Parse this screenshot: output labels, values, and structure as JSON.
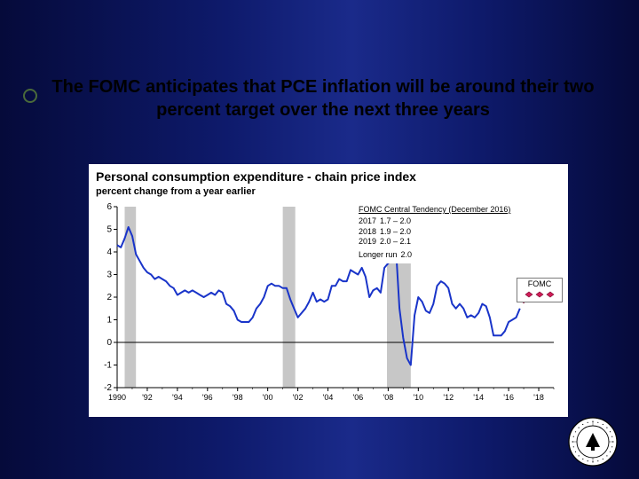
{
  "slide": {
    "background_gradient": [
      "#050a3a",
      "#0e1a6b",
      "#1a2a8a"
    ],
    "headline": "The FOMC anticipates that PCE inflation will be around their two percent target over the next three years"
  },
  "chart": {
    "type": "line",
    "title": "Personal consumption expenditure - chain price index",
    "subtitle": "percent change from a year earlier",
    "background_color": "#ffffff",
    "axis_color": "#000000",
    "line_color": "#1934c9",
    "line_width": 2,
    "marker_color": "#d01c56",
    "marker_size": 6,
    "recession_band_color": "#c7c7c7",
    "zero_line_color": "#000000",
    "xlim": [
      1990,
      2019
    ],
    "ylim": [
      -2,
      6
    ],
    "ytick_step": 1,
    "xticks": [
      1990,
      1992,
      1994,
      1996,
      1998,
      2000,
      2002,
      2004,
      2006,
      2008,
      2010,
      2012,
      2014,
      2016,
      2018
    ],
    "xtick_labels": [
      "1990",
      "'92",
      "'94",
      "'96",
      "'98",
      "'00",
      "'02",
      "'04",
      "'06",
      "'08",
      "'10",
      "'12",
      "'14",
      "'16",
      "'18"
    ],
    "recession_bands": [
      [
        1990.5,
        1991.25
      ],
      [
        2001.0,
        2001.83
      ],
      [
        2007.92,
        2009.5
      ]
    ],
    "series": [
      [
        1990.0,
        4.3
      ],
      [
        1990.25,
        4.2
      ],
      [
        1990.5,
        4.6
      ],
      [
        1990.75,
        5.1
      ],
      [
        1991.0,
        4.7
      ],
      [
        1991.25,
        3.9
      ],
      [
        1991.5,
        3.6
      ],
      [
        1991.75,
        3.3
      ],
      [
        1992.0,
        3.1
      ],
      [
        1992.25,
        3.0
      ],
      [
        1992.5,
        2.8
      ],
      [
        1992.75,
        2.9
      ],
      [
        1993.0,
        2.8
      ],
      [
        1993.25,
        2.7
      ],
      [
        1993.5,
        2.5
      ],
      [
        1993.75,
        2.4
      ],
      [
        1994.0,
        2.1
      ],
      [
        1994.25,
        2.2
      ],
      [
        1994.5,
        2.3
      ],
      [
        1994.75,
        2.2
      ],
      [
        1995.0,
        2.3
      ],
      [
        1995.25,
        2.2
      ],
      [
        1995.5,
        2.1
      ],
      [
        1995.75,
        2.0
      ],
      [
        1996.0,
        2.1
      ],
      [
        1996.25,
        2.2
      ],
      [
        1996.5,
        2.1
      ],
      [
        1996.75,
        2.3
      ],
      [
        1997.0,
        2.2
      ],
      [
        1997.25,
        1.7
      ],
      [
        1997.5,
        1.6
      ],
      [
        1997.75,
        1.4
      ],
      [
        1998.0,
        1.0
      ],
      [
        1998.25,
        0.9
      ],
      [
        1998.5,
        0.9
      ],
      [
        1998.75,
        0.9
      ],
      [
        1999.0,
        1.1
      ],
      [
        1999.25,
        1.5
      ],
      [
        1999.5,
        1.7
      ],
      [
        1999.75,
        2.0
      ],
      [
        2000.0,
        2.5
      ],
      [
        2000.25,
        2.6
      ],
      [
        2000.5,
        2.5
      ],
      [
        2000.75,
        2.5
      ],
      [
        2001.0,
        2.4
      ],
      [
        2001.25,
        2.4
      ],
      [
        2001.5,
        1.9
      ],
      [
        2001.75,
        1.5
      ],
      [
        2002.0,
        1.1
      ],
      [
        2002.25,
        1.3
      ],
      [
        2002.5,
        1.5
      ],
      [
        2002.75,
        1.8
      ],
      [
        2003.0,
        2.2
      ],
      [
        2003.25,
        1.8
      ],
      [
        2003.5,
        1.9
      ],
      [
        2003.75,
        1.8
      ],
      [
        2004.0,
        1.9
      ],
      [
        2004.25,
        2.5
      ],
      [
        2004.5,
        2.5
      ],
      [
        2004.75,
        2.8
      ],
      [
        2005.0,
        2.7
      ],
      [
        2005.25,
        2.7
      ],
      [
        2005.5,
        3.2
      ],
      [
        2005.75,
        3.1
      ],
      [
        2006.0,
        3.0
      ],
      [
        2006.25,
        3.3
      ],
      [
        2006.5,
        2.9
      ],
      [
        2006.75,
        2.0
      ],
      [
        2007.0,
        2.3
      ],
      [
        2007.25,
        2.4
      ],
      [
        2007.5,
        2.2
      ],
      [
        2007.75,
        3.3
      ],
      [
        2008.0,
        3.5
      ],
      [
        2008.25,
        3.6
      ],
      [
        2008.5,
        4.3
      ],
      [
        2008.75,
        1.5
      ],
      [
        2009.0,
        0.2
      ],
      [
        2009.25,
        -0.7
      ],
      [
        2009.5,
        -1.0
      ],
      [
        2009.75,
        1.2
      ],
      [
        2010.0,
        2.0
      ],
      [
        2010.25,
        1.8
      ],
      [
        2010.5,
        1.4
      ],
      [
        2010.75,
        1.3
      ],
      [
        2011.0,
        1.7
      ],
      [
        2011.25,
        2.5
      ],
      [
        2011.5,
        2.7
      ],
      [
        2011.75,
        2.6
      ],
      [
        2012.0,
        2.4
      ],
      [
        2012.25,
        1.7
      ],
      [
        2012.5,
        1.5
      ],
      [
        2012.75,
        1.7
      ],
      [
        2013.0,
        1.5
      ],
      [
        2013.25,
        1.1
      ],
      [
        2013.5,
        1.2
      ],
      [
        2013.75,
        1.1
      ],
      [
        2014.0,
        1.3
      ],
      [
        2014.25,
        1.7
      ],
      [
        2014.5,
        1.6
      ],
      [
        2014.75,
        1.1
      ],
      [
        2015.0,
        0.3
      ],
      [
        2015.25,
        0.3
      ],
      [
        2015.5,
        0.3
      ],
      [
        2015.75,
        0.5
      ],
      [
        2016.0,
        0.9
      ],
      [
        2016.25,
        1.0
      ],
      [
        2016.5,
        1.1
      ],
      [
        2016.75,
        1.5
      ]
    ],
    "forecast_markers": [
      [
        2017,
        1.85
      ],
      [
        2018,
        1.95
      ],
      [
        2019,
        2.05
      ]
    ],
    "legend": {
      "label": "FOMC",
      "marker": "diamond"
    },
    "annotation_box": {
      "title": "FOMC Central Tendency (December 2016)",
      "rows": [
        {
          "year": "2017",
          "range": "1.7 – 2.0"
        },
        {
          "year": "2018",
          "range": "1.9 – 2.0"
        },
        {
          "year": "2019",
          "range": "2.0 – 2.1"
        }
      ],
      "footer_label": "Longer run",
      "footer_value": "2.0"
    }
  },
  "seal": {
    "outer_color": "#000000",
    "inner_color": "#ffffff",
    "text_color": "#000000"
  }
}
